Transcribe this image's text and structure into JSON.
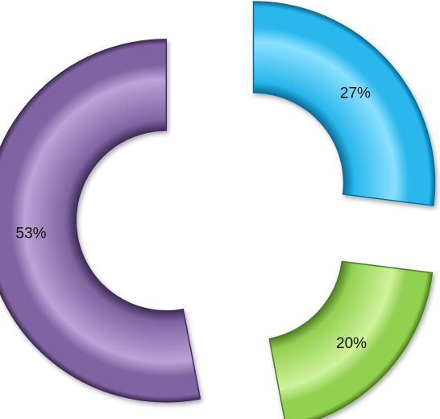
{
  "chart_data": {
    "type": "pie",
    "style": "exploded 3D donut",
    "legend": "none",
    "slices": [
      {
        "value": 27,
        "label": "27%",
        "color": "#29B7EC",
        "edge": "#0B6E99",
        "highlight": "#8BE0FF"
      },
      {
        "value": 20,
        "label": "20%",
        "color": "#92D050",
        "edge": "#4E7F22",
        "highlight": "#CFF29C"
      },
      {
        "value": 53,
        "label": "53%",
        "color": "#8064A2",
        "edge": "#3F2D58",
        "highlight": "#B9A3D6"
      }
    ]
  }
}
